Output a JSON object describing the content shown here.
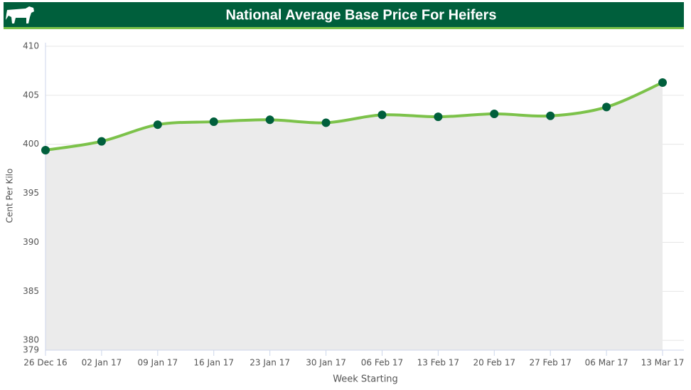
{
  "chart_data": {
    "type": "line",
    "title": "National Average Base Price For Heifers",
    "x_label": "Week Starting",
    "y_label": "Cent Per Kilo",
    "categories": [
      "26 Dec 16",
      "02 Jan 17",
      "09 Jan 17",
      "16 Jan 17",
      "23 Jan 17",
      "30 Jan 17",
      "06 Feb 17",
      "13 Feb 17",
      "20 Feb 17",
      "27 Feb 17",
      "06 Mar 17",
      "13 Mar 17"
    ],
    "values": [
      399.4,
      400.3,
      402.0,
      402.3,
      402.5,
      402.2,
      403.0,
      402.8,
      403.1,
      402.9,
      403.8,
      406.3
    ],
    "line_color": "#7cc24a",
    "marker_color": "#005f3c",
    "area_color": "#ebebeb",
    "ylim": [
      379,
      410
    ],
    "yticks": [
      379,
      380,
      385,
      390,
      395,
      400,
      405,
      410
    ],
    "grid": true
  }
}
